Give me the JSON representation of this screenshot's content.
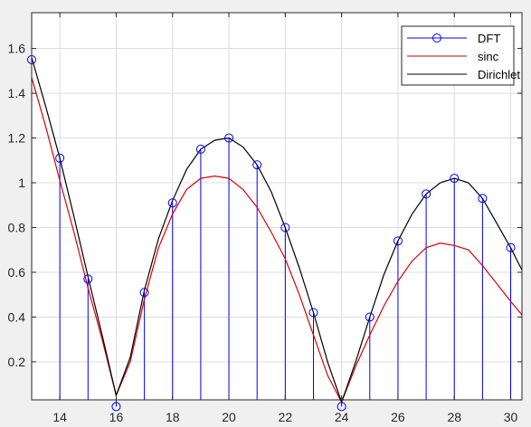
{
  "chart_data": {
    "type": "line",
    "xlim": [
      13,
      30.4
    ],
    "ylim": [
      0.03,
      1.76
    ],
    "x_ticks": [
      14,
      16,
      18,
      20,
      22,
      24,
      26,
      28,
      30
    ],
    "y_ticks": [
      0.2,
      0.4,
      0.6,
      0.8,
      1,
      1.2,
      1.4,
      1.6
    ],
    "x_tick_labels": [
      "14",
      "16",
      "18",
      "20",
      "22",
      "24",
      "26",
      "28",
      "30"
    ],
    "y_tick_labels": [
      "0.2",
      "0.4",
      "0.6",
      "0.8",
      "1",
      "1.2",
      "1.4",
      "1.6"
    ],
    "grid": true,
    "legend_position": "top-right",
    "colors": {
      "dft": "#0000ff",
      "sinc": "#e00000",
      "dirichlet": "#000000",
      "grid": "#dcdcdc",
      "axes": "#262626"
    },
    "series": [
      {
        "name": "DFT",
        "style": "stem",
        "x": [
          13,
          14,
          15,
          16,
          17,
          18,
          19,
          20,
          21,
          22,
          23,
          24,
          25,
          26,
          27,
          28,
          29,
          30
        ],
        "y": [
          1.55,
          1.11,
          0.57,
          0.0,
          0.51,
          0.91,
          1.15,
          1.2,
          1.08,
          0.8,
          0.42,
          0.0,
          0.4,
          0.74,
          0.95,
          1.02,
          0.93,
          0.71
        ]
      },
      {
        "name": "sinc",
        "style": "line",
        "x": [
          13,
          13.5,
          14,
          14.5,
          15,
          15.5,
          16,
          16.5,
          17,
          17.5,
          18,
          18.5,
          19,
          19.5,
          20,
          20.5,
          21,
          21.5,
          22,
          22.5,
          23,
          23.5,
          24,
          24.5,
          25,
          25.5,
          26,
          26.5,
          27,
          27.5,
          28,
          28.5,
          29,
          29.5,
          30,
          30.4
        ],
        "y": [
          1.47,
          1.25,
          1.01,
          0.78,
          0.53,
          0.3,
          0.05,
          0.2,
          0.48,
          0.71,
          0.86,
          0.97,
          1.02,
          1.03,
          1.02,
          0.97,
          0.89,
          0.78,
          0.66,
          0.5,
          0.32,
          0.14,
          0.02,
          0.18,
          0.32,
          0.45,
          0.56,
          0.65,
          0.71,
          0.73,
          0.72,
          0.7,
          0.63,
          0.55,
          0.47,
          0.41
        ]
      },
      {
        "name": "Dirichlet",
        "style": "line",
        "x": [
          13,
          13.5,
          14,
          14.5,
          15,
          15.5,
          16,
          16.5,
          17,
          17.5,
          18,
          18.5,
          19,
          19.5,
          20,
          20.5,
          21,
          21.5,
          22,
          22.5,
          23,
          23.5,
          24,
          24.5,
          25,
          25.5,
          26,
          26.5,
          27,
          27.5,
          28,
          28.5,
          29,
          29.5,
          30,
          30.4
        ],
        "y": [
          1.56,
          1.34,
          1.11,
          0.85,
          0.58,
          0.32,
          0.05,
          0.22,
          0.52,
          0.75,
          0.92,
          1.06,
          1.15,
          1.19,
          1.2,
          1.16,
          1.08,
          0.96,
          0.8,
          0.62,
          0.42,
          0.2,
          0.02,
          0.2,
          0.4,
          0.59,
          0.74,
          0.86,
          0.95,
          1.0,
          1.02,
          1.0,
          0.93,
          0.82,
          0.71,
          0.61
        ]
      }
    ]
  }
}
